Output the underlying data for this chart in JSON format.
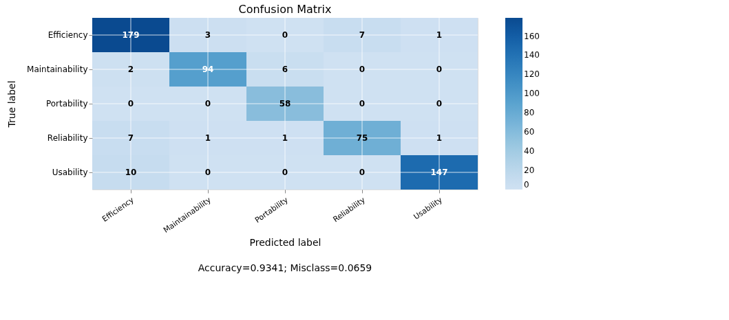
{
  "chart_data": {
    "type": "heatmap",
    "title": "Confusion Matrix",
    "xlabel": "Predicted label",
    "ylabel": "True label",
    "categories": [
      "Efficiency",
      "Maintainability",
      "Portability",
      "Reliability",
      "Usability"
    ],
    "y_categories": [
      "Efficiency",
      "Maintainability",
      "Portability",
      "Reliability",
      "Usability"
    ],
    "cells": [
      [
        179,
        3,
        0,
        7,
        1
      ],
      [
        2,
        94,
        6,
        0,
        0
      ],
      [
        0,
        0,
        58,
        0,
        0
      ],
      [
        7,
        1,
        1,
        75,
        1
      ],
      [
        10,
        0,
        0,
        0,
        147
      ]
    ],
    "clim": [
      0,
      179
    ],
    "cticks": [
      0,
      20,
      40,
      60,
      80,
      100,
      120,
      140,
      160
    ],
    "data_labels": true,
    "grid": true,
    "annotations": [
      "Accuracy=0.9341; Misclass=0.0659"
    ]
  }
}
